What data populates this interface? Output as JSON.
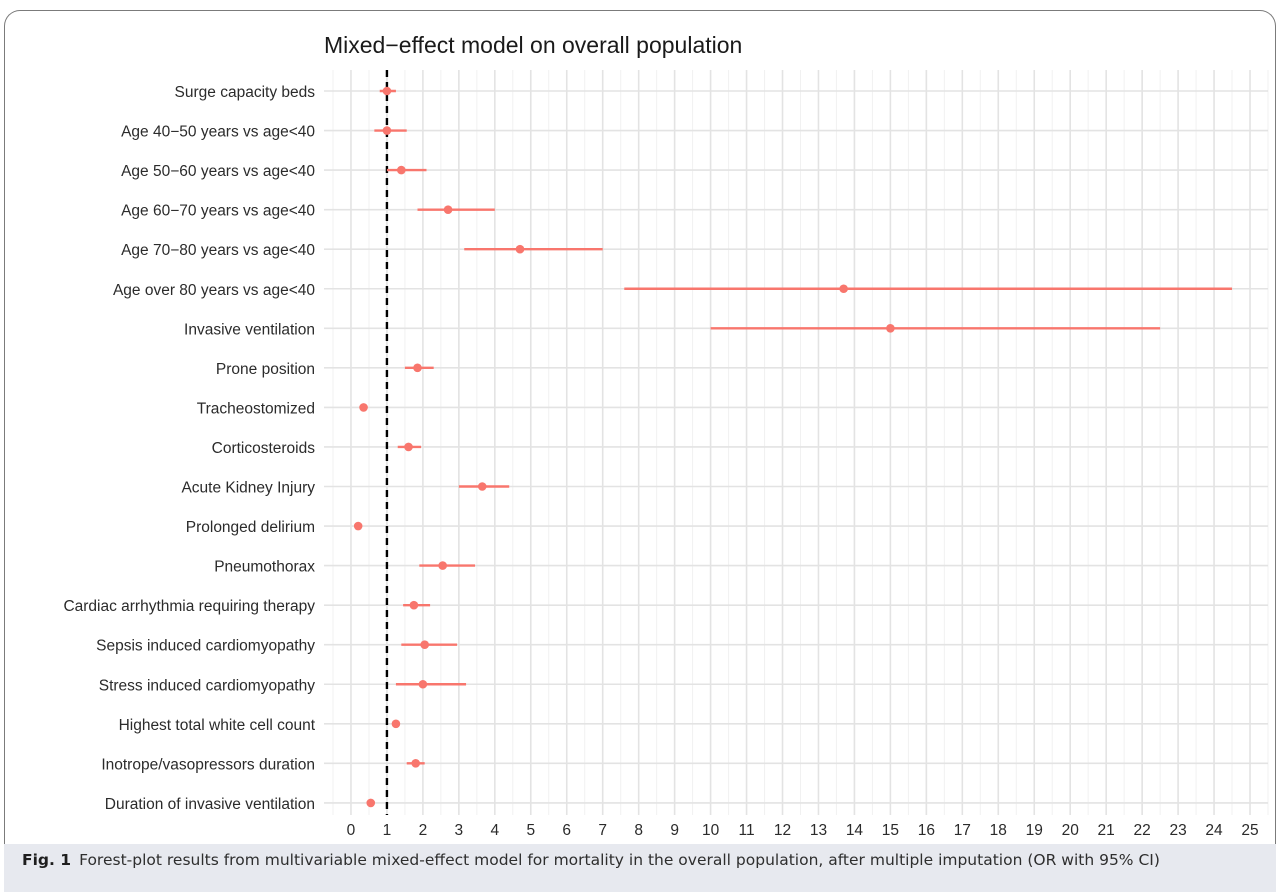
{
  "figure": {
    "caption_label": "Fig. 1",
    "caption_text": "Forest-plot results from multivariable mixed-effect model for mortality in the overall population, after multiple imputation (OR with 95% CI)"
  },
  "chart_data": {
    "type": "forest",
    "title": "Mixed−effect model on overall population",
    "xlabel": "",
    "ylabel": "",
    "xlim": [
      -0.75,
      25.5
    ],
    "x_ticks": [
      0,
      1,
      2,
      3,
      4,
      5,
      6,
      7,
      8,
      9,
      10,
      11,
      12,
      13,
      14,
      15,
      16,
      17,
      18,
      19,
      20,
      21,
      22,
      23,
      24,
      25
    ],
    "reference_line": 1,
    "grid": true,
    "series_color": "#F8766D",
    "rows": [
      {
        "label": "Surge capacity beds",
        "or": 1.0,
        "ci_low": 0.8,
        "ci_high": 1.25
      },
      {
        "label": "Age 40−50 years vs age<40",
        "or": 1.0,
        "ci_low": 0.65,
        "ci_high": 1.55
      },
      {
        "label": "Age 50−60 years vs age<40",
        "or": 1.4,
        "ci_low": 1.0,
        "ci_high": 2.1
      },
      {
        "label": "Age 60−70 years vs age<40",
        "or": 2.7,
        "ci_low": 1.85,
        "ci_high": 4.0
      },
      {
        "label": "Age 70−80 years vs age<40",
        "or": 4.7,
        "ci_low": 3.15,
        "ci_high": 7.0
      },
      {
        "label": "Age over 80 years vs age<40",
        "or": 13.7,
        "ci_low": 7.6,
        "ci_high": 24.5
      },
      {
        "label": "Invasive ventilation",
        "or": 15.0,
        "ci_low": 10.0,
        "ci_high": 22.5
      },
      {
        "label": "Prone position",
        "or": 1.85,
        "ci_low": 1.5,
        "ci_high": 2.3
      },
      {
        "label": "Tracheostomized",
        "or": 0.35,
        "ci_low": 0.28,
        "ci_high": 0.45
      },
      {
        "label": "Corticosteroids",
        "or": 1.6,
        "ci_low": 1.3,
        "ci_high": 1.95
      },
      {
        "label": "Acute Kidney Injury",
        "or": 3.65,
        "ci_low": 3.0,
        "ci_high": 4.4
      },
      {
        "label": "Prolonged delirium",
        "or": 0.2,
        "ci_low": 0.15,
        "ci_high": 0.3
      },
      {
        "label": "Pneumothorax",
        "or": 2.55,
        "ci_low": 1.9,
        "ci_high": 3.45
      },
      {
        "label": "Cardiac arrhythmia requiring therapy",
        "or": 1.75,
        "ci_low": 1.45,
        "ci_high": 2.2
      },
      {
        "label": "Sepsis induced cardiomyopathy",
        "or": 2.05,
        "ci_low": 1.4,
        "ci_high": 2.95
      },
      {
        "label": "Stress induced cardiomyopathy",
        "or": 2.0,
        "ci_low": 1.25,
        "ci_high": 3.2
      },
      {
        "label": "Highest total white cell count",
        "or": 1.25,
        "ci_low": 1.15,
        "ci_high": 1.35
      },
      {
        "label": "Inotrope/vasopressors duration",
        "or": 1.8,
        "ci_low": 1.55,
        "ci_high": 2.05
      },
      {
        "label": "Duration of invasive ventilation",
        "or": 0.55,
        "ci_low": 0.45,
        "ci_high": 0.65
      }
    ]
  }
}
